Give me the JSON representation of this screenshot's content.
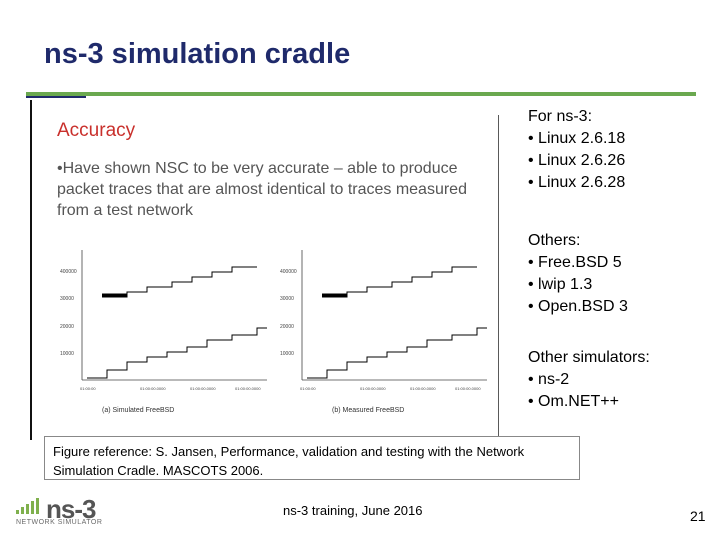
{
  "slide": {
    "title": "ns-3 simulation cradle"
  },
  "embedded_figure": {
    "heading": "Accuracy",
    "text": "•Have shown NSC to be very accurate – able to produce packet traces that are almost identical to traces measured from a test network",
    "plots": [
      {
        "caption": "(a) Simulated FreeBSD",
        "y_ticks": [
          "400000",
          "30000",
          "20000",
          "10000"
        ],
        "x_ticks": [
          "01:00:00",
          "01:00:00.0000",
          "01:00:00.0000",
          "01:00:00.0000"
        ]
      },
      {
        "caption": "(b) Measured FreeBSD",
        "y_ticks": [
          "400000",
          "30000",
          "20000",
          "10000"
        ],
        "x_ticks": [
          "01:00:00",
          "01:00:00.0000",
          "01:00:00.0000",
          "01:00:00.0000"
        ]
      }
    ]
  },
  "side_panel": {
    "groups": [
      {
        "heading": "For ns-3:",
        "items": [
          "• Linux 2.6.18",
          "• Linux 2.6.26",
          "• Linux 2.6.28"
        ]
      },
      {
        "heading": "Others:",
        "items": [
          "• Free.BSD 5",
          "• lwip 1.3",
          "• Open.BSD 3"
        ]
      },
      {
        "heading": "Other simulators:",
        "items": [
          "• ns-2",
          "• Om.NET++"
        ]
      }
    ]
  },
  "figure_reference": "Figure reference:  S. Jansen, Performance, validation and testing with the Network Simulation Cradle. MASCOTS 2006.",
  "logo": {
    "name": "ns-3",
    "sub": "NETWORK SIMULATOR"
  },
  "footer": {
    "text": "ns-3 training, June 2016",
    "page_number": "21"
  },
  "colors": {
    "title": "#1f2a6b",
    "rule": "#6aa84f",
    "accent": "#c9302c"
  }
}
